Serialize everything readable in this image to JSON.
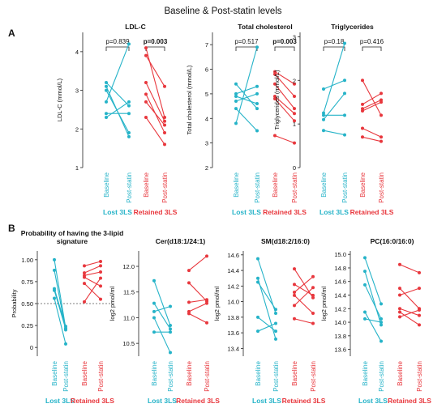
{
  "figure": {
    "title": "Baseline & Post-statin levels",
    "panel_a_label": "A",
    "panel_b_label": "B"
  },
  "colors": {
    "lost": "#25b3c8",
    "retained": "#e8373d",
    "axis": "#222222",
    "threshold": "#555555"
  },
  "chart_data": [
    {
      "type": "line",
      "panel": "A",
      "title": "LDL-C",
      "ylabel": "LDL-C (mmol/L)",
      "ylim": [
        1,
        4.5
      ],
      "yticks": [
        "1",
        "2",
        "3",
        "4"
      ],
      "xtick_labels": [
        "Baseline",
        "Post-statin",
        "Baseline",
        "Post-statin"
      ],
      "groups": [
        "Lost 3LS",
        "Retained 3LS"
      ],
      "pvalues": [
        {
          "text": "p=0.839",
          "bold": false
        },
        {
          "text": "p=0.003",
          "bold": true
        }
      ],
      "series": [
        {
          "group": "Lost 3LS",
          "pairs": [
            [
              3.2,
              2.6
            ],
            [
              3.1,
              1.8
            ],
            [
              2.7,
              4.2
            ],
            [
              2.4,
              2.4
            ],
            [
              2.3,
              2.7
            ],
            [
              3.0,
              1.9
            ]
          ]
        },
        {
          "group": "Retained 3LS",
          "pairs": [
            [
              4.1,
              2.3
            ],
            [
              3.9,
              3.1
            ],
            [
              3.2,
              2.2
            ],
            [
              2.9,
              1.9
            ],
            [
              2.7,
              2.1
            ],
            [
              2.3,
              1.6
            ]
          ]
        }
      ]
    },
    {
      "type": "line",
      "panel": "A",
      "title": "Total cholesterol",
      "ylabel": "Total cholesterol (mmol/L)",
      "ylim": [
        2,
        7.5
      ],
      "yticks": [
        "2",
        "3",
        "4",
        "5",
        "6",
        "7"
      ],
      "xtick_labels": [
        "Baseline",
        "Post-statin",
        "Baseline",
        "Post-statin"
      ],
      "groups": [
        "Lost 3LS",
        "Retained 3LS"
      ],
      "pvalues": [
        {
          "text": "p=0.517",
          "bold": false
        },
        {
          "text": "p=0.003",
          "bold": true
        }
      ],
      "series": [
        {
          "group": "Lost 3LS",
          "pairs": [
            [
              5.4,
              4.4
            ],
            [
              5.0,
              5.3
            ],
            [
              4.7,
              5.0
            ],
            [
              4.4,
              3.5
            ],
            [
              3.8,
              6.9
            ],
            [
              4.9,
              4.6
            ]
          ]
        },
        {
          "group": "Retained 3LS",
          "pairs": [
            [
              5.9,
              5.4
            ],
            [
              5.8,
              4.9
            ],
            [
              5.4,
              4.4
            ],
            [
              4.9,
              4.2
            ],
            [
              4.8,
              3.9
            ],
            [
              3.3,
              3.0
            ]
          ]
        }
      ]
    },
    {
      "type": "line",
      "panel": "A",
      "title": "Triglycerides",
      "ylabel": "Triglycerides (mmol/L)",
      "ylim": [
        0,
        3.1
      ],
      "yticks": [
        "0",
        "1",
        "2",
        "3"
      ],
      "xtick_labels": [
        "Baseline",
        "Post-statin",
        "Baseline",
        "Post-statin"
      ],
      "groups": [
        "Lost 3LS",
        "Retained 3LS"
      ],
      "pvalues": [
        {
          "text": "p=0.18",
          "bold": false
        },
        {
          "text": "p=0.416",
          "bold": false
        }
      ],
      "series": [
        {
          "group": "Lost 3LS",
          "pairs": [
            [
              1.8,
              2.0
            ],
            [
              1.25,
              2.85
            ],
            [
              1.2,
              1.2
            ],
            [
              1.1,
              1.7
            ],
            [
              0.85,
              0.75
            ]
          ]
        },
        {
          "group": "Retained 3LS",
          "pairs": [
            [
              2.0,
              1.2
            ],
            [
              1.45,
              1.7
            ],
            [
              1.35,
              1.55
            ],
            [
              1.3,
              1.5
            ],
            [
              0.9,
              0.7
            ],
            [
              0.7,
              0.6
            ]
          ]
        }
      ]
    },
    {
      "type": "line",
      "panel": "B",
      "title": "Probability of having the 3-lipid signature",
      "ylabel": "Probability",
      "ylim": [
        -0.1,
        1.1
      ],
      "yticks": [
        "0",
        "0.25",
        "0.50",
        "0.75",
        "1.00"
      ],
      "threshold": 0.5,
      "xtick_labels": [
        "Baseline",
        "Post-statin",
        "Baseline",
        "Post-statin"
      ],
      "groups": [
        "Lost 3LS",
        "Retained 3LS"
      ],
      "series": [
        {
          "group": "Lost 3LS",
          "pairs": [
            [
              1.0,
              0.22
            ],
            [
              0.88,
              0.2
            ],
            [
              0.67,
              0.24
            ],
            [
              0.65,
              0.21
            ],
            [
              0.56,
              0.04
            ]
          ]
        },
        {
          "group": "Retained 3LS",
          "pairs": [
            [
              0.93,
              0.98
            ],
            [
              0.85,
              0.93
            ],
            [
              0.82,
              0.86
            ],
            [
              0.8,
              0.7
            ],
            [
              0.73,
              0.55
            ],
            [
              0.52,
              0.79
            ]
          ]
        }
      ]
    },
    {
      "type": "line",
      "panel": "B",
      "title": "Cer(d18:1/24:1)",
      "ylabel": "log2 pmol/ml",
      "ylim": [
        10.25,
        12.3
      ],
      "yticks": [
        "10.5",
        "11.0",
        "11.5",
        "12.0"
      ],
      "xtick_labels": [
        "Baseline",
        "Post-statin",
        "Baseline",
        "Post-statin"
      ],
      "groups": [
        "Lost 3LS",
        "Retained 3LS"
      ],
      "series": [
        {
          "group": "Lost 3LS",
          "pairs": [
            [
              11.72,
              10.85
            ],
            [
              11.28,
              10.78
            ],
            [
              11.12,
              11.22
            ],
            [
              11.0,
              10.32
            ],
            [
              10.72,
              10.72
            ]
          ]
        },
        {
          "group": "Retained 3LS",
          "pairs": [
            [
              11.92,
              12.2
            ],
            [
              11.68,
              11.32
            ],
            [
              11.3,
              11.35
            ],
            [
              11.12,
              11.28
            ],
            [
              11.08,
              10.9
            ]
          ]
        }
      ]
    },
    {
      "type": "line",
      "panel": "B",
      "title": "SM(d18:2/16:0)",
      "ylabel": "log2 pmol/ml",
      "ylim": [
        13.3,
        14.65
      ],
      "yticks": [
        "13.4",
        "13.6",
        "13.8",
        "14.0",
        "14.2",
        "14.4",
        "14.6"
      ],
      "xtick_labels": [
        "Baseline",
        "Post-statin",
        "Baseline",
        "Post-statin"
      ],
      "groups": [
        "Lost 3LS",
        "Retained 3LS"
      ],
      "series": [
        {
          "group": "Lost 3LS",
          "pairs": [
            [
              14.55,
              13.85
            ],
            [
              14.3,
              13.52
            ],
            [
              14.25,
              13.9
            ],
            [
              13.8,
              13.62
            ],
            [
              13.62,
              13.72
            ]
          ]
        },
        {
          "group": "Retained 3LS",
          "pairs": [
            [
              14.42,
              14.05
            ],
            [
              14.22,
              14.08
            ],
            [
              14.12,
              14.32
            ],
            [
              14.08,
              13.85
            ],
            [
              13.95,
              14.18
            ],
            [
              13.78,
              13.72
            ]
          ]
        }
      ]
    },
    {
      "type": "line",
      "panel": "B",
      "title": "PC(16:0/16:0)",
      "ylabel": "log2 pmol/ml",
      "ylim": [
        13.5,
        15.05
      ],
      "yticks": [
        "13.6",
        "13.8",
        "14.0",
        "14.2",
        "14.4",
        "14.6",
        "14.8",
        "15.0"
      ],
      "xtick_labels": [
        "Baseline",
        "Post-statin",
        "Baseline",
        "Post-statin"
      ],
      "groups": [
        "Lost 3LS",
        "Retained 3LS"
      ],
      "series": [
        {
          "group": "Lost 3LS",
          "pairs": [
            [
              14.95,
              14.27
            ],
            [
              14.75,
              13.96
            ],
            [
              14.55,
              14.05
            ],
            [
              14.15,
              13.72
            ],
            [
              14.05,
              14.0
            ]
          ]
        },
        {
          "group": "Retained 3LS",
          "pairs": [
            [
              14.85,
              14.73
            ],
            [
              14.5,
              14.2
            ],
            [
              14.4,
              14.5
            ],
            [
              14.2,
              14.1
            ],
            [
              14.15,
              13.96
            ],
            [
              14.08,
              14.18
            ]
          ]
        }
      ]
    }
  ]
}
